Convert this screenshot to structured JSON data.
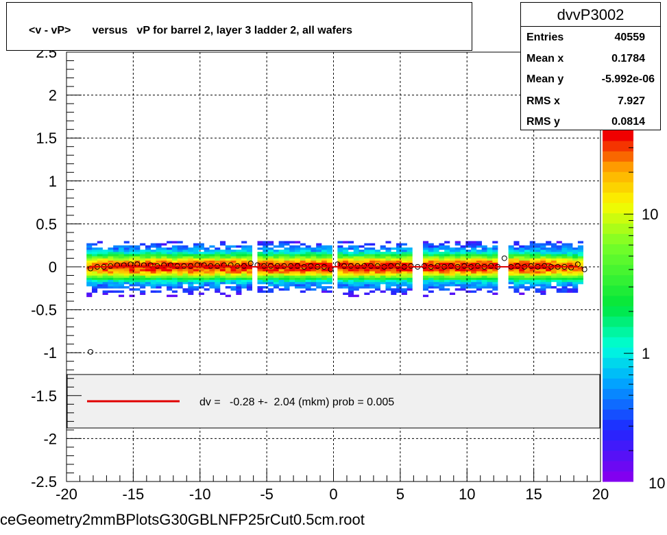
{
  "title": "<v - vP>       versus   vP for barrel 2, layer 3 ladder 2, all wafers",
  "stats": {
    "name": "dvvP3002",
    "rows": [
      {
        "label": "Entries",
        "value": "40559"
      },
      {
        "label": "Mean x",
        "value": "0.1784"
      },
      {
        "label": "Mean y",
        "value": "-5.992e-06"
      },
      {
        "label": "RMS x",
        "value": "7.927"
      },
      {
        "label": "RMS y",
        "value": "0.0814"
      }
    ]
  },
  "legend": {
    "text": "dv =   -0.28 +-  2.04 (mkm) prob = 0.005",
    "line_color": "#e00000"
  },
  "footer": "ceGeometry2mmBPlotsG30GBLNFP25rCut0.5cm.root",
  "chart_data": {
    "type": "heatmap",
    "title": "<v - vP>       versus   vP for barrel 2, layer 3 ladder 2, all wafers",
    "xlabel": "",
    "ylabel": "",
    "xlim": [
      -20,
      20
    ],
    "ylim": [
      -2.5,
      2.5
    ],
    "x_ticks": [
      "-20",
      "-15",
      "-10",
      "-5",
      "0",
      "5",
      "10",
      "15",
      "20"
    ],
    "y_ticks": [
      "-2.5",
      "-2",
      "-1.5",
      "-1",
      "-0.5",
      "0",
      "0.5",
      "1",
      "1.5",
      "2",
      "2.5"
    ],
    "grid": true,
    "z_scale": "log",
    "z_ticks": [
      "1",
      "10"
    ],
    "z_tick_values": [
      1,
      10
    ],
    "z_range": [
      0.12,
      40
    ],
    "outer_z_label": "10",
    "band": {
      "x_min": -18.5,
      "x_max": 18.5,
      "gaps": [
        -6.0,
        0.0,
        6.3,
        12.7
      ]
    },
    "profile_points": [
      {
        "x": -18.2,
        "y": -0.99
      },
      {
        "x": -18.2,
        "y": -0.02
      },
      {
        "x": -17.7,
        "y": 0.0
      },
      {
        "x": -17.2,
        "y": 0.0
      },
      {
        "x": -16.7,
        "y": 0.01
      },
      {
        "x": -16.2,
        "y": 0.02
      },
      {
        "x": -15.7,
        "y": 0.02
      },
      {
        "x": -15.2,
        "y": 0.03
      },
      {
        "x": -14.7,
        "y": 0.03
      },
      {
        "x": -14.2,
        "y": 0.02
      },
      {
        "x": -13.7,
        "y": 0.02
      },
      {
        "x": -13.2,
        "y": 0.01
      },
      {
        "x": -12.7,
        "y": 0.02
      },
      {
        "x": -12.2,
        "y": 0.02
      },
      {
        "x": -11.7,
        "y": 0.01
      },
      {
        "x": -11.2,
        "y": 0.01
      },
      {
        "x": -10.7,
        "y": 0.01
      },
      {
        "x": -10.2,
        "y": 0.02
      },
      {
        "x": -9.7,
        "y": 0.02
      },
      {
        "x": -9.2,
        "y": 0.01
      },
      {
        "x": -8.7,
        "y": 0.01
      },
      {
        "x": -8.2,
        "y": 0.02
      },
      {
        "x": -7.7,
        "y": 0.02
      },
      {
        "x": -7.2,
        "y": 0.01
      },
      {
        "x": -6.7,
        "y": 0.01
      },
      {
        "x": -6.2,
        "y": 0.04
      },
      {
        "x": -5.7,
        "y": 0.02
      },
      {
        "x": -5.2,
        "y": 0.01
      },
      {
        "x": -4.7,
        "y": 0.01
      },
      {
        "x": -4.2,
        "y": 0.01
      },
      {
        "x": -3.7,
        "y": 0.01
      },
      {
        "x": -3.2,
        "y": 0.01
      },
      {
        "x": -2.7,
        "y": 0.01
      },
      {
        "x": -2.2,
        "y": 0.0
      },
      {
        "x": -1.7,
        "y": 0.01
      },
      {
        "x": -1.2,
        "y": 0.0
      },
      {
        "x": -0.7,
        "y": 0.0
      },
      {
        "x": -0.2,
        "y": -0.03
      },
      {
        "x": 0.3,
        "y": 0.03
      },
      {
        "x": 0.8,
        "y": 0.01
      },
      {
        "x": 1.3,
        "y": 0.01
      },
      {
        "x": 1.8,
        "y": 0.01
      },
      {
        "x": 2.3,
        "y": 0.01
      },
      {
        "x": 2.8,
        "y": 0.01
      },
      {
        "x": 3.3,
        "y": 0.01
      },
      {
        "x": 3.8,
        "y": 0.0
      },
      {
        "x": 4.3,
        "y": 0.01
      },
      {
        "x": 4.8,
        "y": 0.01
      },
      {
        "x": 5.3,
        "y": 0.0
      },
      {
        "x": 5.8,
        "y": 0.01
      },
      {
        "x": 6.3,
        "y": 0.0
      },
      {
        "x": 6.8,
        "y": 0.01
      },
      {
        "x": 7.3,
        "y": 0.0
      },
      {
        "x": 7.8,
        "y": 0.01
      },
      {
        "x": 8.3,
        "y": 0.0
      },
      {
        "x": 8.8,
        "y": 0.01
      },
      {
        "x": 9.3,
        "y": 0.0
      },
      {
        "x": 9.8,
        "y": 0.01
      },
      {
        "x": 10.3,
        "y": 0.0
      },
      {
        "x": 10.8,
        "y": 0.01
      },
      {
        "x": 11.3,
        "y": 0.0
      },
      {
        "x": 11.8,
        "y": 0.01
      },
      {
        "x": 12.3,
        "y": 0.0
      },
      {
        "x": 12.8,
        "y": 0.1
      },
      {
        "x": 13.3,
        "y": 0.0
      },
      {
        "x": 13.8,
        "y": 0.01
      },
      {
        "x": 14.3,
        "y": 0.0
      },
      {
        "x": 14.8,
        "y": 0.01
      },
      {
        "x": 15.3,
        "y": 0.0
      },
      {
        "x": 15.8,
        "y": 0.01
      },
      {
        "x": 16.3,
        "y": 0.0
      },
      {
        "x": 16.8,
        "y": 0.0
      },
      {
        "x": 17.3,
        "y": 0.0
      },
      {
        "x": 17.8,
        "y": -0.01
      },
      {
        "x": 18.3,
        "y": 0.03
      },
      {
        "x": 18.8,
        "y": -0.03
      }
    ],
    "fit_line": {
      "x": [
        -18.3,
        18.3
      ],
      "y": [
        0.0,
        0.0
      ],
      "color": "#e00000"
    }
  }
}
